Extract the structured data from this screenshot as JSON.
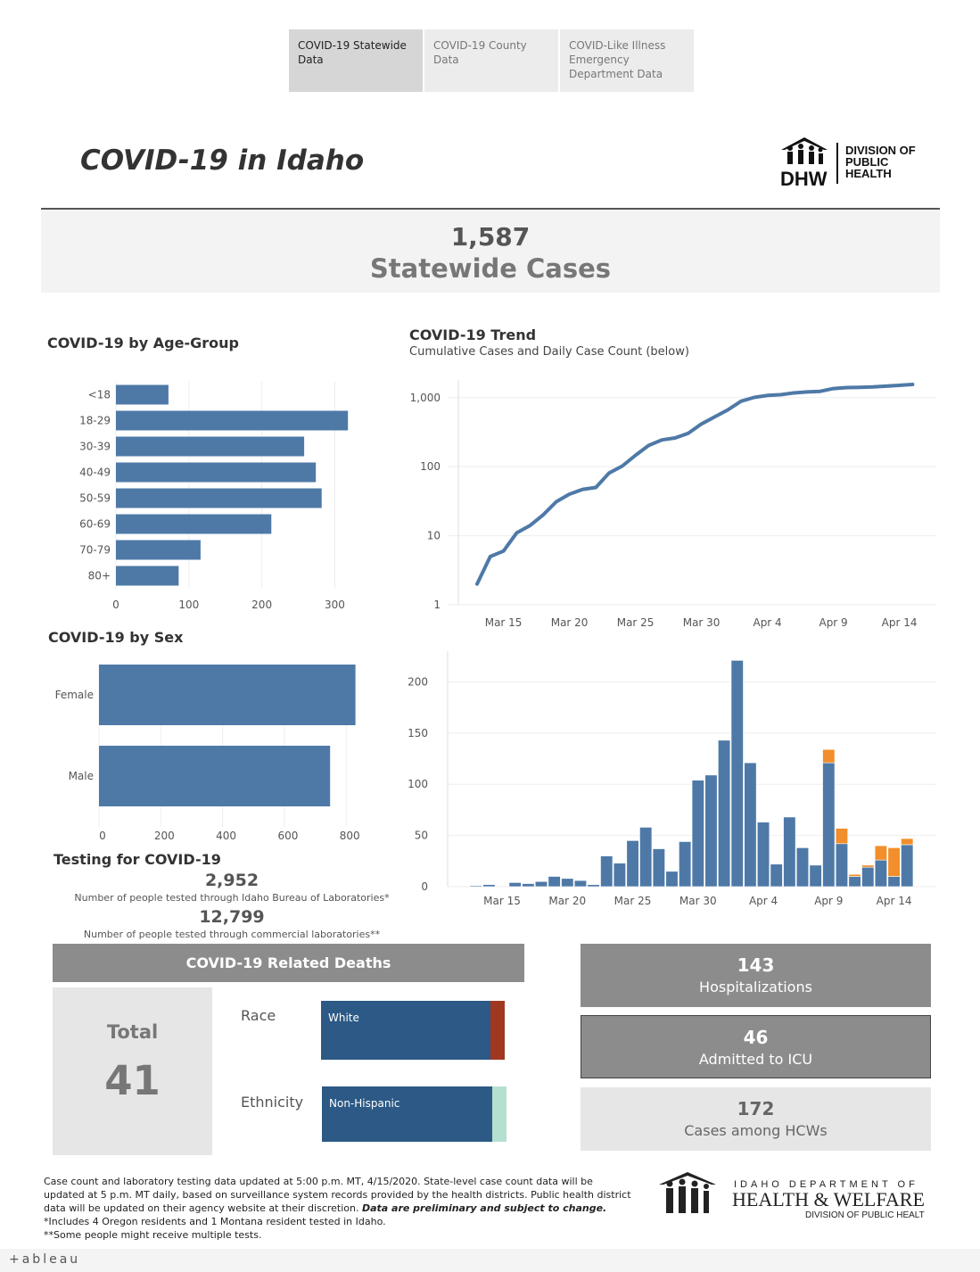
{
  "tabs": [
    {
      "label": "COVID-19 Statewide Data",
      "active": true
    },
    {
      "label": "COVID-19 County Data",
      "active": false
    },
    {
      "label": "COVID-Like Illness Emergency Department Data",
      "active": false
    }
  ],
  "title": "COVID-19 in Idaho",
  "dhw_logo": {
    "mark": "DHW",
    "line1": "DIVISION OF",
    "line2": "PUBLIC",
    "line3": "HEALTH"
  },
  "statewide": {
    "count": "1,587",
    "label": "Statewide Cases"
  },
  "age_chart": {
    "title": "COVID-19 by Age-Group",
    "chart_data": {
      "type": "bar",
      "orientation": "horizontal",
      "categories": [
        "<18",
        "18-29",
        "30-39",
        "40-49",
        "50-59",
        "60-69",
        "70-79",
        "80+"
      ],
      "values": [
        72,
        318,
        258,
        274,
        282,
        213,
        116,
        86
      ],
      "xlim": [
        0,
        330
      ],
      "xticks": [
        "0",
        "100",
        "200",
        "300"
      ],
      "color": "#4e79a7"
    }
  },
  "sex_chart": {
    "title": "COVID-19 by Sex",
    "chart_data": {
      "type": "bar",
      "orientation": "horizontal",
      "categories": [
        "Female",
        "Male"
      ],
      "values": [
        830,
        748
      ],
      "xlim": [
        0,
        860
      ],
      "xticks": [
        "0",
        "200",
        "400",
        "600",
        "800"
      ],
      "color": "#4e79a7"
    }
  },
  "trend": {
    "title": "COVID-19 Trend",
    "subtitle": "Cumulative Cases and Daily Case Count (below)",
    "cumulative": {
      "type": "line",
      "yscale": "log",
      "ylim": [
        1,
        1800
      ],
      "yticks": [
        "1",
        "10",
        "100",
        "1,000"
      ],
      "xticks": [
        "Mar 15",
        "Mar 20",
        "Mar 25",
        "Mar 30",
        "Apr 4",
        "Apr 9",
        "Apr 14"
      ],
      "x": [
        "Mar 13",
        "Mar 14",
        "Mar 15",
        "Mar 16",
        "Mar 17",
        "Mar 18",
        "Mar 19",
        "Mar 20",
        "Mar 21",
        "Mar 22",
        "Mar 23",
        "Mar 24",
        "Mar 25",
        "Mar 26",
        "Mar 27",
        "Mar 28",
        "Mar 29",
        "Mar 30",
        "Mar 31",
        "Apr 1",
        "Apr 2",
        "Apr 3",
        "Apr 4",
        "Apr 5",
        "Apr 6",
        "Apr 7",
        "Apr 8",
        "Apr 9",
        "Apr 10",
        "Apr 11",
        "Apr 12",
        "Apr 13",
        "Apr 14",
        "Apr 15"
      ],
      "values": [
        2,
        5,
        6,
        11,
        14,
        20,
        31,
        40,
        47,
        50,
        81,
        102,
        146,
        203,
        244,
        260,
        305,
        415,
        525,
        665,
        888,
        1009,
        1077,
        1101,
        1170,
        1210,
        1232,
        1353,
        1396,
        1407,
        1426,
        1464,
        1504,
        1553
      ],
      "color": "#4e79a7"
    },
    "daily": {
      "type": "bar",
      "stacked": true,
      "ylim": [
        0,
        230
      ],
      "yticks": [
        "0",
        "50",
        "100",
        "150",
        "200"
      ],
      "xticks": [
        "Mar 15",
        "Mar 20",
        "Mar 25",
        "Mar 30",
        "Apr 4",
        "Apr 9",
        "Apr 14"
      ],
      "x": [
        "Mar 13",
        "Mar 14",
        "Mar 15",
        "Mar 16",
        "Mar 17",
        "Mar 18",
        "Mar 19",
        "Mar 20",
        "Mar 21",
        "Mar 22",
        "Mar 23",
        "Mar 24",
        "Mar 25",
        "Mar 26",
        "Mar 27",
        "Mar 28",
        "Mar 29",
        "Mar 30",
        "Mar 31",
        "Apr 1",
        "Apr 2",
        "Apr 3",
        "Apr 4",
        "Apr 5",
        "Apr 6",
        "Apr 7",
        "Apr 8",
        "Apr 9",
        "Apr 10",
        "Apr 11",
        "Apr 12",
        "Apr 13",
        "Apr 14",
        "Apr 15"
      ],
      "series": [
        {
          "color": "#4e79a7",
          "values": [
            1,
            2,
            0,
            4,
            3,
            5,
            10,
            8,
            6,
            2,
            30,
            23,
            45,
            58,
            37,
            15,
            44,
            104,
            109,
            143,
            221,
            121,
            63,
            22,
            68,
            38,
            21,
            121,
            42,
            10,
            19,
            26,
            10,
            41
          ]
        },
        {
          "color": "#f28e2b",
          "values": [
            0,
            0,
            0,
            0,
            0,
            0,
            0,
            0,
            0,
            0,
            0,
            0,
            0,
            0,
            0,
            0,
            0,
            0,
            0,
            0,
            0,
            0,
            0,
            0,
            0,
            0,
            0,
            13,
            15,
            2,
            2,
            14,
            28,
            6
          ]
        }
      ]
    }
  },
  "testing": {
    "title": "Testing for COVID-19",
    "ibl_count": "2,952",
    "ibl_label": "Number of people tested through Idaho Bureau of Laboratories*",
    "commercial_count": "12,799",
    "commercial_label": "Number of people tested through commercial laboratories**"
  },
  "deaths": {
    "header": "COVID-19 Related Deaths",
    "total_label": "Total",
    "total_value": "41",
    "race_label": "Race",
    "race_bar": {
      "segments": [
        {
          "label": "White",
          "share": 0.94,
          "color": "#2c5985"
        },
        {
          "label": "",
          "share": 0.06,
          "color": "#a0381f"
        }
      ]
    },
    "ethnicity_label": "Ethnicity",
    "ethnicity_bar": {
      "segments": [
        {
          "label": "Non-Hispanic",
          "share": 0.94,
          "color": "#2c5985"
        },
        {
          "label": "",
          "share": 0.06,
          "color": "#b5e0d0"
        }
      ]
    }
  },
  "kpis": {
    "hospitalizations": {
      "value": "143",
      "label": "Hospitalizations"
    },
    "icu": {
      "value": "46",
      "label": "Admitted to ICU"
    },
    "hcw": {
      "value": "172",
      "label": "Cases among HCWs"
    }
  },
  "footer": {
    "line1": "Case count and laboratory testing data updated at 5:00 p.m. MT, 4/15/2020. State-level case count data will be",
    "line2": "updated at 5 p.m. MT daily, based on surveillance system records provided by the health districts. Public health district",
    "line3a": "data will be updated on their agency website at their discretion. ",
    "line3b": "Data are preliminary and subject to change.",
    "line4": "*Includes 4 Oregon residents and 1 Montana resident tested in Idaho.",
    "line5": "**Some people might receive multiple tests."
  },
  "hw_logo": {
    "line1": "IDAHO DEPARTMENT OF",
    "line2": "HEALTH & WELFARE",
    "line3": "DIVISION OF PUBLIC HEALTH"
  },
  "tableau": {
    "label": "+ableau"
  }
}
